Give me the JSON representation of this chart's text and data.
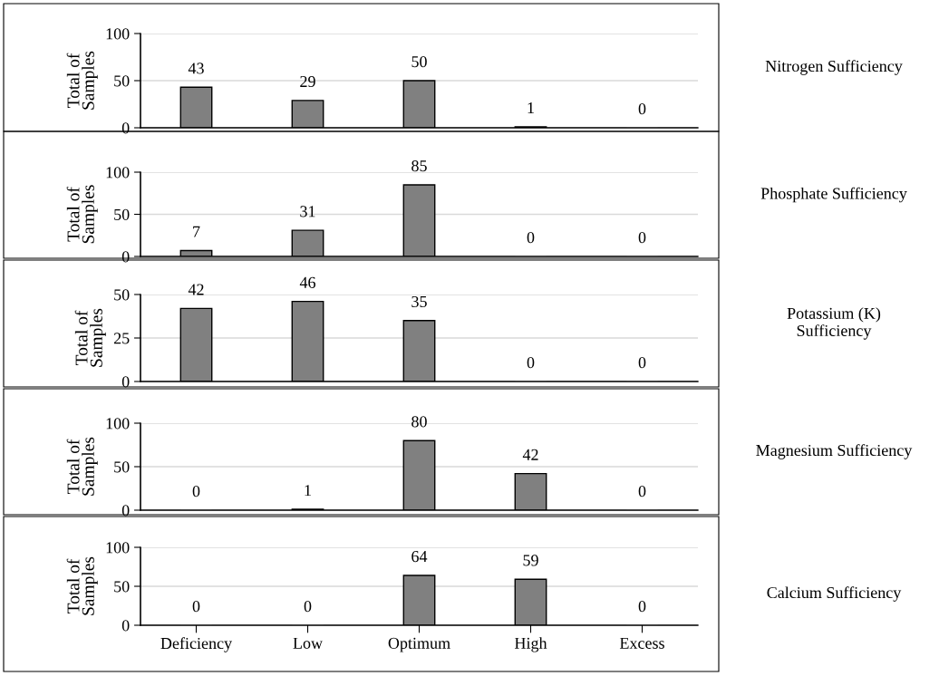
{
  "chart_data": [
    {
      "type": "bar",
      "y2label": "Nitrogen Sufficiency",
      "ylabel": "Total of\nSamples",
      "categories": [
        null,
        null,
        null,
        null,
        null
      ],
      "values": [
        43,
        29,
        50,
        1,
        0
      ],
      "color": "#808080",
      "ylim": [
        0,
        100
      ],
      "yticks": [
        0,
        50,
        100
      ],
      "grid": "y",
      "data_labels": true,
      "tick_labels": "y"
    },
    {
      "type": "bar",
      "y2label": "Phosphate Sufficiency",
      "ylabel": "Total of\nSamples",
      "categories": [
        null,
        null,
        null,
        null,
        null
      ],
      "values": [
        7,
        31,
        85,
        0,
        0
      ],
      "color": "#808080",
      "ylim": [
        0,
        100
      ],
      "yticks": [
        0,
        50,
        100
      ],
      "grid": "y",
      "data_labels": true,
      "tick_labels": "y"
    },
    {
      "type": "bar",
      "y2label": "Potassium (K)\nSufficiency",
      "ylabel": "Total of\nSamples",
      "categories": [
        null,
        null,
        null,
        null,
        null
      ],
      "values": [
        42,
        46,
        35,
        0,
        0
      ],
      "color": "#808080",
      "ylim": [
        0,
        50
      ],
      "yticks": [
        0,
        25,
        50
      ],
      "grid": "y",
      "data_labels": true,
      "tick_labels": "y"
    },
    {
      "type": "bar",
      "y2label": "Magnesium Sufficiency",
      "ylabel": "Total of\nSamples",
      "categories": [
        null,
        null,
        null,
        null,
        null
      ],
      "values": [
        0,
        1,
        80,
        42,
        0
      ],
      "color": "#808080",
      "ylim": [
        0,
        100
      ],
      "yticks": [
        0,
        50,
        100
      ],
      "grid": "y",
      "data_labels": true,
      "tick_labels": "y"
    },
    {
      "type": "bar",
      "y2label": "Calcium Sufficiency",
      "ylabel": "Total of\nSamples",
      "categories": [
        "Deficiency",
        "Low",
        "Optimum",
        "High",
        "Excess"
      ],
      "values": [
        0,
        0,
        64,
        59,
        0
      ],
      "color": "#808080",
      "ylim": [
        0,
        100
      ],
      "yticks": [
        0,
        50,
        100
      ],
      "grid": "y",
      "data_labels": true
    }
  ]
}
